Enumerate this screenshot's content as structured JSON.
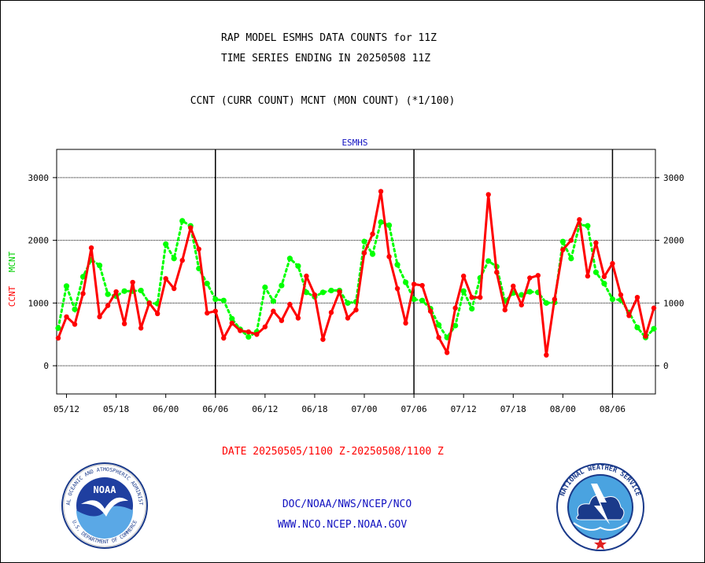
{
  "header": {
    "line1": "RAP MODEL ESMHS DATA COUNTS for 11Z",
    "line2": "TIME SERIES ENDING IN 20250508 11Z",
    "line3": "CCNT (CURR COUNT) MCNT (MON COUNT) (*1/100)"
  },
  "chart_data": {
    "type": "line",
    "title": "ESMHS",
    "ylabel_ccnt": "CCNT",
    "ylabel_mcnt": "MCNT",
    "ylim": [
      -450,
      3450
    ],
    "yticks": [
      0,
      1000,
      2000,
      3000
    ],
    "xticks": [
      "05/12",
      "05/18",
      "06/00",
      "06/06",
      "06/12",
      "06/18",
      "07/00",
      "07/06",
      "07/12",
      "07/18",
      "08/00",
      "08/06"
    ],
    "grid": true,
    "colors": {
      "ccnt": "#ff0000",
      "mcnt": "#00ff00"
    },
    "series": [
      {
        "name": "CCNT",
        "values": [
          440,
          780,
          660,
          1150,
          1880,
          780,
          960,
          1180,
          670,
          1330,
          600,
          1000,
          830,
          1390,
          1230,
          1680,
          2200,
          1860,
          840,
          870,
          440,
          680,
          560,
          540,
          500,
          620,
          870,
          720,
          980,
          760,
          1430,
          1130,
          420,
          850,
          1180,
          760,
          890,
          1800,
          2100,
          2780,
          1740,
          1230,
          680,
          1300,
          1280,
          870,
          450,
          210,
          920,
          1430,
          1090,
          1090,
          2730,
          1490,
          890,
          1270,
          970,
          1400,
          1440,
          170,
          1060,
          1850,
          2000,
          2330,
          1430,
          1960,
          1420,
          1630,
          1130,
          800,
          1090,
          470,
          920
        ]
      },
      {
        "name": "MCNT",
        "values": [
          600,
          1270,
          900,
          1420,
          1690,
          1600,
          1140,
          1110,
          1190,
          1190,
          1200,
          1000,
          990,
          1940,
          1710,
          2310,
          2230,
          1550,
          1310,
          1060,
          1040,
          750,
          580,
          460,
          540,
          1250,
          1030,
          1280,
          1710,
          1590,
          1170,
          1100,
          1170,
          1200,
          1200,
          1000,
          1020,
          1980,
          1780,
          2290,
          2240,
          1610,
          1330,
          1060,
          1040,
          910,
          650,
          450,
          640,
          1190,
          910,
          1400,
          1670,
          1580,
          1030,
          1160,
          1130,
          1180,
          1170,
          1000,
          1010,
          1980,
          1710,
          2250,
          2230,
          1490,
          1310,
          1060,
          1050,
          850,
          610,
          450,
          590
        ]
      }
    ],
    "dividers": [
      "06/06",
      "07/06",
      "08/06"
    ]
  },
  "footer": {
    "date_range": "DATE 20250505/1100 Z-20250508/1100 Z",
    "link1": "DOC/NOAA/NWS/NCEP/NCO",
    "link2": "WWW.NCO.NCEP.NOAA.GOV"
  },
  "logos": {
    "noaa_text": "NOAA",
    "noaa_ring": "NATIONAL OCEANIC AND ATMOSPHERIC ADMINISTRATION",
    "noaa_ring_bottom": "U.S. DEPARTMENT OF COMMERCE",
    "nws_ring": "NATIONAL WEATHER SERVICE"
  }
}
